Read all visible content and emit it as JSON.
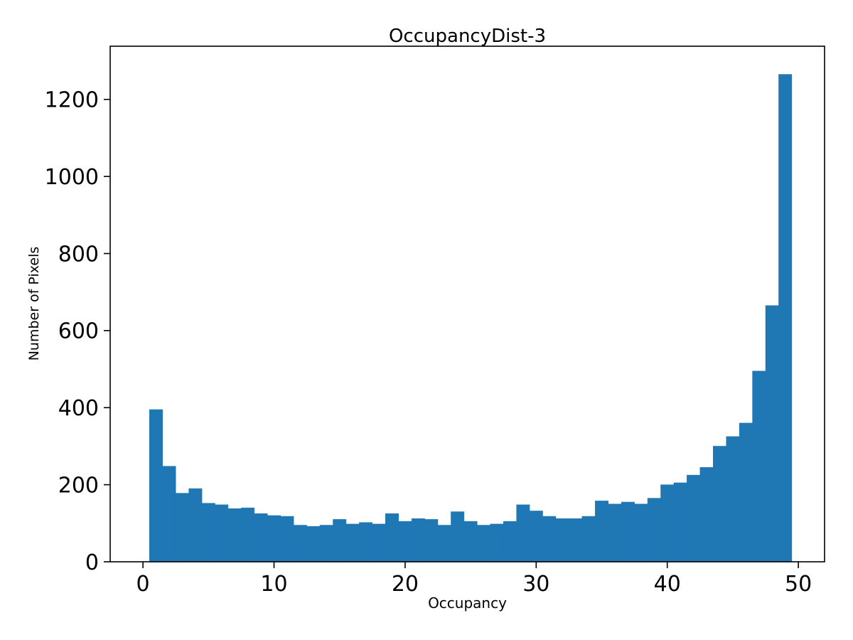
{
  "chart_data": {
    "type": "bar",
    "subtype": "histogram",
    "title": "OccupancyDist-3",
    "xlabel": "Occupancy",
    "ylabel": "Number of Pixels",
    "bar_color": "#1f77b4",
    "bin_start": 0.5,
    "bin_width": 1,
    "values": [
      395,
      248,
      178,
      190,
      152,
      148,
      138,
      140,
      125,
      120,
      118,
      95,
      92,
      95,
      110,
      98,
      102,
      98,
      125,
      105,
      112,
      110,
      95,
      130,
      105,
      95,
      98,
      105,
      148,
      132,
      118,
      112,
      112,
      118,
      158,
      150,
      155,
      150,
      165,
      200,
      205,
      225,
      245,
      300,
      325,
      360,
      495,
      665,
      1265
    ],
    "xlim": [
      -2.5,
      52
    ],
    "ylim": [
      0,
      1338
    ],
    "xticks": [
      0,
      10,
      20,
      30,
      40,
      50
    ],
    "yticks": [
      0,
      200,
      400,
      600,
      800,
      1000,
      1200
    ],
    "grid": false,
    "legend": null,
    "spine_color": "#000000",
    "background_color": "#ffffff"
  }
}
